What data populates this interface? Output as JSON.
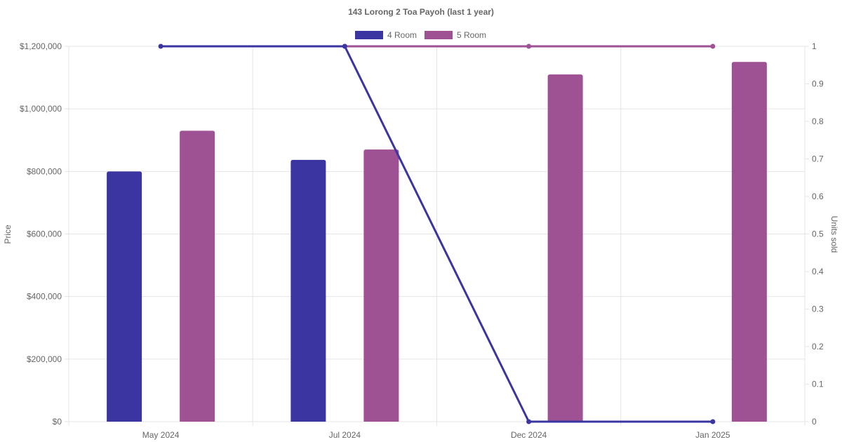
{
  "chart_data": {
    "type": "bar",
    "title": "143 Lorong 2 Toa Payoh (last 1 year)",
    "categories": [
      "May 2024",
      "Jul 2024",
      "Dec 2024",
      "Jan 2025"
    ],
    "ylabel": "Price",
    "y2label": "Units sold",
    "ylim": [
      0,
      1200000
    ],
    "y2lim": [
      0,
      1
    ],
    "yticks": [
      "$0",
      "$200,000",
      "$400,000",
      "$600,000",
      "$800,000",
      "$1,000,000",
      "$1,200,000"
    ],
    "y2ticks": [
      "0",
      "0.1",
      "0.2",
      "0.3",
      "0.4",
      "0.5",
      "0.6",
      "0.7",
      "0.8",
      "0.9",
      "1"
    ],
    "grid": true,
    "legend_position": "top-center",
    "series": [
      {
        "name": "4 Room",
        "color": "#3a35a0",
        "price_values": [
          800000,
          837000,
          null,
          null
        ],
        "units_sold": [
          1,
          1,
          0,
          0
        ]
      },
      {
        "name": "5 Room",
        "color": "#9e5193",
        "price_values": [
          930000,
          870000,
          1110000,
          1150000
        ],
        "units_sold": [
          null,
          1,
          1,
          1
        ]
      }
    ]
  }
}
